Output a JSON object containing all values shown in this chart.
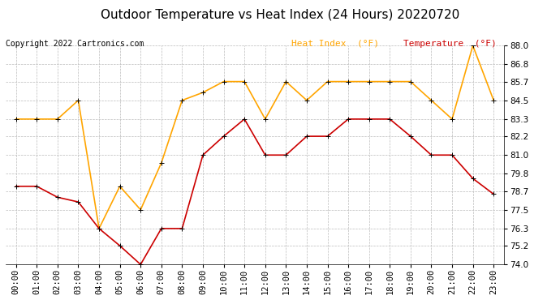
{
  "title": "Outdoor Temperature vs Heat Index (24 Hours) 20220720",
  "copyright": "Copyright 2022 Cartronics.com",
  "legend_heat": "Heat Index  (°F)",
  "legend_temp": "Temperature  (°F)",
  "x_labels": [
    "00:00",
    "01:00",
    "02:00",
    "03:00",
    "04:00",
    "05:00",
    "06:00",
    "07:00",
    "08:00",
    "09:00",
    "10:00",
    "11:00",
    "12:00",
    "13:00",
    "14:00",
    "15:00",
    "16:00",
    "17:00",
    "18:00",
    "19:00",
    "20:00",
    "21:00",
    "22:00",
    "23:00"
  ],
  "heat_index": [
    83.3,
    83.3,
    83.3,
    84.5,
    76.3,
    79.0,
    77.5,
    80.5,
    84.5,
    85.0,
    85.7,
    85.7,
    83.3,
    85.7,
    84.5,
    85.7,
    85.7,
    85.7,
    85.7,
    85.7,
    84.5,
    83.3,
    88.0,
    84.5
  ],
  "temperature": [
    79.0,
    79.0,
    78.3,
    78.0,
    76.3,
    75.2,
    74.0,
    76.3,
    76.3,
    81.0,
    82.2,
    83.3,
    81.0,
    81.0,
    82.2,
    82.2,
    83.3,
    83.3,
    83.3,
    82.2,
    81.0,
    81.0,
    79.5,
    78.5
  ],
  "heat_color": "#FFA500",
  "temp_color": "#CC0000",
  "bg_color": "#ffffff",
  "plot_bg_color": "#ffffff",
  "grid_color": "#bbbbbb",
  "ylim": [
    74.0,
    88.0
  ],
  "yticks": [
    74.0,
    75.2,
    76.3,
    77.5,
    78.7,
    79.8,
    81.0,
    82.2,
    83.3,
    84.5,
    85.7,
    86.8,
    88.0
  ],
  "title_fontsize": 11,
  "copyright_fontsize": 7,
  "legend_fontsize": 8,
  "tick_fontsize": 7.5
}
